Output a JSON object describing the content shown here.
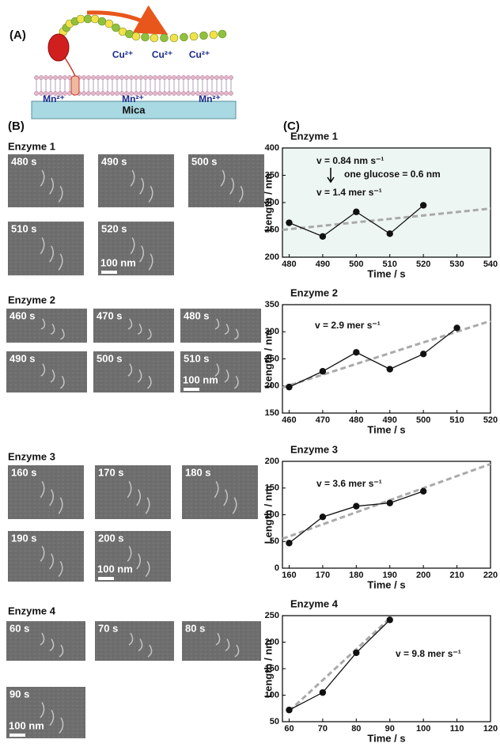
{
  "panel_a": {
    "label": "(A)",
    "top_ions": [
      "Cu²⁺",
      "Cu²⁺",
      "Cu²⁺"
    ],
    "bottom_ions": [
      "Mn²⁺",
      "Mn²⁺",
      "Mn²⁺"
    ],
    "substrate": "Mica"
  },
  "panel_b": {
    "label": "(B)",
    "groups": [
      {
        "title": "Enzyme 1",
        "frames": [
          "480 s",
          "490 s",
          "500 s",
          "510 s",
          "520 s"
        ],
        "scale": "100 nm"
      },
      {
        "title": "Enzyme 2",
        "frames": [
          "460 s",
          "470 s",
          "480 s",
          "490 s",
          "500 s",
          "510 s"
        ],
        "scale": "100 nm"
      },
      {
        "title": "Enzyme 3",
        "frames": [
          "160 s",
          "170 s",
          "180 s",
          "190 s",
          "200 s"
        ],
        "scale": "100 nm"
      },
      {
        "title": "Enzyme 4",
        "frames": [
          "60 s",
          "70 s",
          "80 s",
          "90 s"
        ],
        "scale": "100 nm"
      }
    ]
  },
  "panel_c": {
    "label": "(C)"
  },
  "chart_data": [
    {
      "type": "line",
      "title": "Enzyme 1",
      "x_label": "Time / s",
      "y_label": "Length / nm",
      "background": "#eef6f3",
      "x": [
        480,
        490,
        500,
        510,
        520
      ],
      "series": [
        {
          "color": "#111111",
          "values": [
            263,
            238,
            283,
            243,
            295
          ]
        }
      ],
      "trend": {
        "x": [
          478,
          540
        ],
        "values": [
          250,
          289
        ],
        "color": "#aaaaaa"
      },
      "annotations": [
        "v = 0.84 nm s⁻¹",
        "one glucose = 0.6 nm",
        "v = 1.4 mer s⁻¹"
      ],
      "xlim": [
        478,
        540
      ],
      "xticks": [
        480,
        490,
        500,
        510,
        520,
        530,
        540
      ],
      "ylim": [
        200,
        400
      ],
      "yticks": [
        200,
        250,
        300,
        350,
        400
      ]
    },
    {
      "type": "line",
      "title": "Enzyme 2",
      "x_label": "Time / s",
      "y_label": "Length / nm",
      "background": "#ffffff",
      "x": [
        460,
        470,
        480,
        490,
        500,
        510
      ],
      "series": [
        {
          "color": "#111111",
          "values": [
            198,
            227,
            262,
            231,
            259,
            307
          ]
        }
      ],
      "trend": {
        "x": [
          458,
          520
        ],
        "values": [
          197,
          320
        ],
        "color": "#aaaaaa"
      },
      "annotations": [
        "v = 2.9 mer s⁻¹"
      ],
      "xlim": [
        458,
        520
      ],
      "xticks": [
        460,
        470,
        480,
        490,
        500,
        510,
        520
      ],
      "ylim": [
        150,
        350
      ],
      "yticks": [
        150,
        200,
        250,
        300,
        350
      ]
    },
    {
      "type": "line",
      "title": "Enzyme 3",
      "x_label": "Time / s",
      "y_label": "Length / nm",
      "background": "#ffffff",
      "x": [
        160,
        170,
        180,
        190,
        200
      ],
      "series": [
        {
          "color": "#111111",
          "values": [
            47,
            96,
            116,
            122,
            144
          ]
        }
      ],
      "trend": {
        "x": [
          158,
          220
        ],
        "values": [
          55,
          195
        ],
        "color": "#aaaaaa"
      },
      "annotations": [
        "v = 3.6 mer s⁻¹"
      ],
      "xlim": [
        158,
        220
      ],
      "xticks": [
        160,
        170,
        180,
        190,
        200,
        210,
        220
      ],
      "ylim": [
        0,
        200
      ],
      "yticks": [
        0,
        50,
        100,
        150,
        200
      ]
    },
    {
      "type": "line",
      "title": "Enzyme 4",
      "x_label": "Time / s",
      "y_label": "Length / nm",
      "background": "#ffffff",
      "x": [
        60,
        70,
        80,
        90
      ],
      "series": [
        {
          "color": "#111111",
          "values": [
            72,
            105,
            180,
            242
          ]
        }
      ],
      "trend": {
        "x": [
          60,
          90
        ],
        "values": [
          70,
          245
        ],
        "color": "#aaaaaa"
      },
      "annotations": [
        "v = 9.8 mer s⁻¹"
      ],
      "xlim": [
        58,
        120
      ],
      "xticks": [
        60,
        70,
        80,
        90,
        100,
        110,
        120
      ],
      "ylim": [
        50,
        250
      ],
      "yticks": [
        50,
        100,
        150,
        200,
        250
      ]
    }
  ]
}
